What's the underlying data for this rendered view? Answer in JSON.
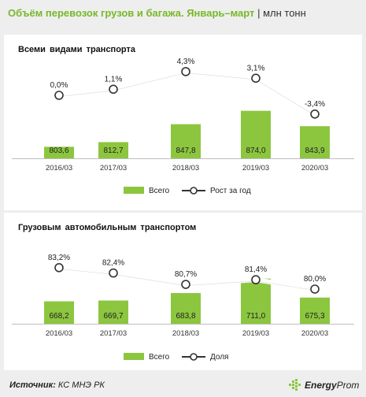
{
  "header": {
    "title": "Объём перевозок грузов и багажа. Январь–март",
    "separator": "|",
    "unit": "млн тонн"
  },
  "colors": {
    "bar": "#8cc63f",
    "line": "#ffffff",
    "title_accent": "#78b82a",
    "axis_text": "#333333"
  },
  "chart_data": [
    {
      "type": "bar",
      "title": "Всеми видами транспорта",
      "categories": [
        "2016/03",
        "2017/03",
        "2018/03",
        "2019/03",
        "2020/03"
      ],
      "series": [
        {
          "name": "Всего",
          "type": "bar",
          "values": [
            803.6,
            812.7,
            847.8,
            874.0,
            843.9
          ],
          "labels": [
            "803,6",
            "812,7",
            "847,8",
            "874,0",
            "843,9"
          ]
        },
        {
          "name": "Рост за год",
          "type": "line",
          "values": [
            0.0,
            1.1,
            4.3,
            3.1,
            -3.4
          ],
          "labels": [
            "0,0%",
            "1,1%",
            "4,3%",
            "3,1%",
            "-3,4%"
          ]
        }
      ],
      "legend": "bottom-center",
      "grid": false
    },
    {
      "type": "bar",
      "title": "Грузовым автомобильным транспортом",
      "categories": [
        "2016/03",
        "2017/03",
        "2018/03",
        "2019/03",
        "2020/03"
      ],
      "series": [
        {
          "name": "Всего",
          "type": "bar",
          "values": [
            668.2,
            669.7,
            683.8,
            711.0,
            675.3
          ],
          "labels": [
            "668,2",
            "669,7",
            "683,8",
            "711,0",
            "675,3"
          ]
        },
        {
          "name": "Доля",
          "type": "line",
          "values": [
            83.2,
            82.4,
            80.7,
            81.4,
            80.0
          ],
          "labels": [
            "83,2%",
            "82,4%",
            "80,7%",
            "81,4%",
            "80,0%"
          ]
        }
      ],
      "legend": "bottom-center",
      "grid": false
    }
  ],
  "footer": {
    "source_label": "Источник:",
    "source_value": "КС МНЭ РК",
    "logo_main": "Energy",
    "logo_sub": "Prom"
  }
}
